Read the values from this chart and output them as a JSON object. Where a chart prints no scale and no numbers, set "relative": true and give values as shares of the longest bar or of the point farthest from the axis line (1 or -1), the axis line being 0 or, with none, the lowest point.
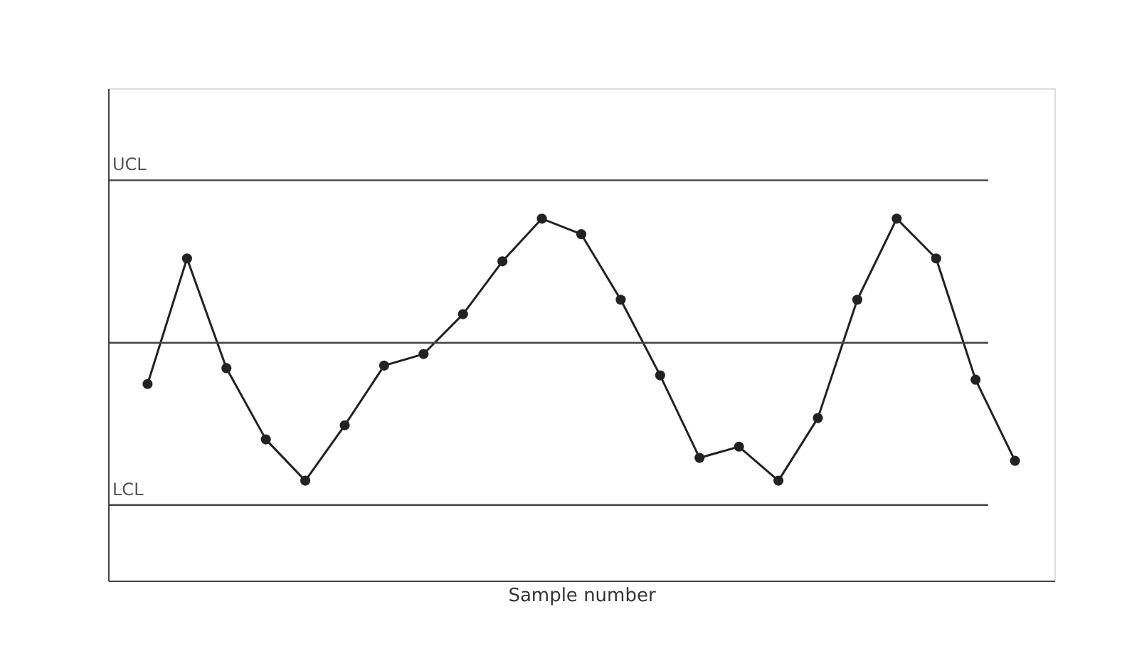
{
  "chart_data": {
    "type": "line",
    "xlabel": "Sample number",
    "relative": true,
    "marker": "circle",
    "line_style": "solid",
    "grid": false,
    "categories": [
      null,
      null,
      null,
      null,
      null,
      null,
      null,
      null,
      null,
      null,
      null,
      null,
      null,
      null,
      null,
      null,
      null,
      null,
      null,
      null,
      null,
      null,
      null
    ],
    "series": [
      {
        "color": "#222222",
        "values": [
          0.543,
          0.89,
          0.587,
          0.39,
          0.276,
          0.429,
          0.594,
          0.626,
          0.736,
          0.882,
          1,
          0.957,
          0.776,
          0.567,
          0.339,
          0.37,
          0.276,
          0.449,
          0.776,
          1,
          0.89,
          0.555,
          0.331
        ]
      }
    ],
    "ref_lines": [
      {
        "axis": "y",
        "value": 1.106,
        "label": "UCL",
        "color": "#444444"
      },
      {
        "axis": "y",
        "value": 0.657,
        "label": null,
        "color": "#444444"
      },
      {
        "axis": "y",
        "value": 0.209,
        "label": "LCL",
        "color": "#444444"
      }
    ]
  }
}
